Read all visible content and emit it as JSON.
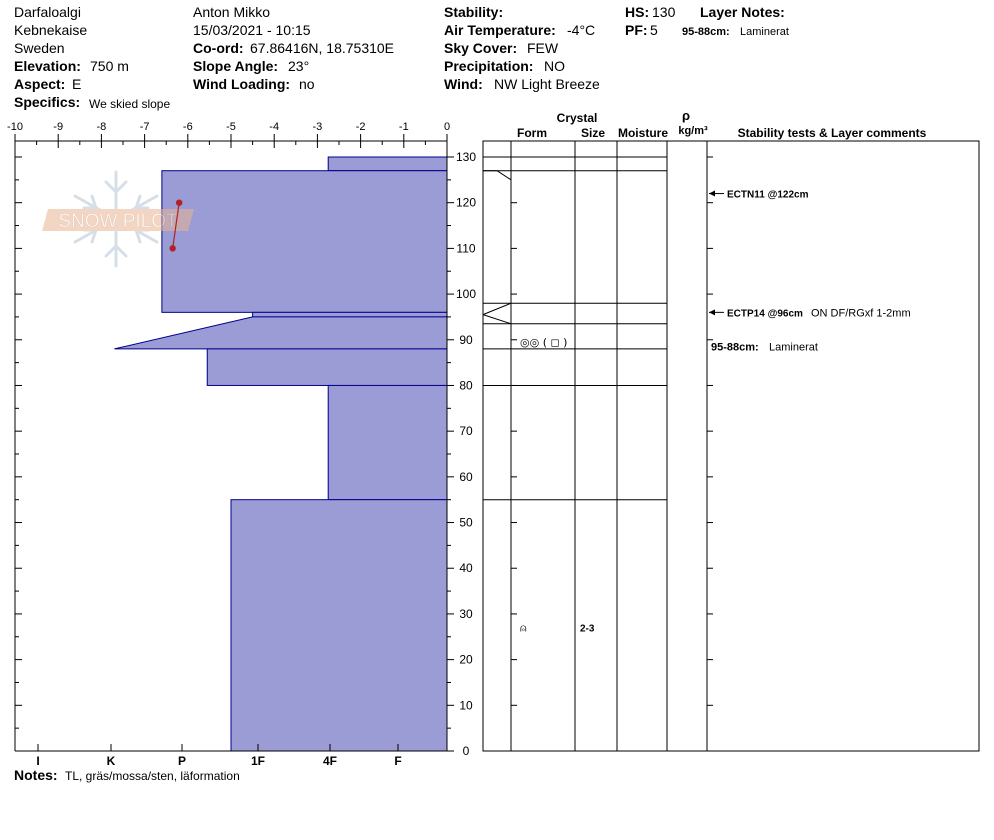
{
  "header": {
    "location": "Darfaloalgi",
    "region": "Kebnekaise",
    "country": "Sweden",
    "elevation_label": "Elevation:",
    "elevation_value": "750 m",
    "aspect_label": "Aspect:",
    "aspect_value": "E",
    "specifics_label": "Specifics:",
    "specifics_value": "We skied slope",
    "observer": "Anton Mikko",
    "datetime": "15/03/2021 - 10:15",
    "coord_label": "Co-ord:",
    "coord_value": "67.86416N, 18.75310E",
    "slope_label": "Slope Angle:",
    "slope_value": "23°",
    "wind_loading_label": "Wind Loading:",
    "wind_loading_value": "no",
    "stability_label": "Stability:",
    "air_temp_label": "Air Temperature:",
    "air_temp_value": "-4°C",
    "sky_label": "Sky Cover:",
    "sky_value": "FEW",
    "precip_label": "Precipitation:",
    "precip_value": "NO",
    "wind_label": "Wind:",
    "wind_value": "NW Light Breeze",
    "hs_label": "HS:",
    "hs_value": "130",
    "pf_label": "PF:",
    "pf_value": "5",
    "layer_notes_label": "Layer Notes:",
    "layer_note_range": "95-88cm:",
    "layer_note_text": "Laminerat"
  },
  "notes": {
    "label": "Notes:",
    "text": "TL, gräs/mossa/sten, läformation"
  },
  "watermark": {
    "text": "SNOW PILOT"
  },
  "table_headers": {
    "crystal": "Crystal",
    "form": "Form",
    "size": "Size",
    "moisture": "Moisture",
    "rho": "ρ",
    "density_unit": "kg/m³",
    "comments": "Stability tests & Layer comments"
  },
  "chart_data": {
    "type": "area",
    "temperature_axis": {
      "ticks": [
        -10,
        -9,
        -8,
        -7,
        -6,
        -5,
        -4,
        -3,
        -2,
        -1,
        0
      ],
      "range": [
        -10,
        0
      ]
    },
    "hardness_axis": {
      "labels": [
        "I",
        "K",
        "P",
        "1F",
        "4F",
        "F"
      ]
    },
    "depth_axis": {
      "ticks": [
        0,
        10,
        20,
        30,
        40,
        50,
        60,
        70,
        80,
        90,
        100,
        110,
        120,
        130
      ],
      "range": [
        0,
        130
      ]
    },
    "hardness_profile": [
      {
        "top": 130,
        "bottom": 127,
        "width": 2.75
      },
      {
        "top": 127,
        "bottom": 96,
        "width": 6.6
      },
      {
        "top": 96,
        "bottom": 95,
        "width": 4.5,
        "wedge_top": true
      },
      {
        "top": 95,
        "bottom": 88,
        "width": 7.7,
        "wedge": true
      },
      {
        "top": 88,
        "bottom": 80,
        "width": 5.55
      },
      {
        "top": 80,
        "bottom": 55,
        "width": 2.75
      },
      {
        "top": 55,
        "bottom": 0,
        "width": 5.0
      }
    ],
    "temperature_profile": [
      {
        "depth": 120,
        "temp": -6.2
      },
      {
        "depth": 110,
        "temp": -6.35
      }
    ],
    "layer_boundaries": [
      130,
      127,
      98,
      93.5,
      88,
      80,
      55
    ],
    "layer_grains": [
      {
        "depth": 89.5,
        "form": "◎◎ ( ◻ )",
        "size": ""
      },
      {
        "depth": 27,
        "form": "⍝",
        "size": "2-3"
      }
    ],
    "stability_tests": [
      {
        "depth": 122,
        "label": "ECTN11 @122cm",
        "comment": ""
      },
      {
        "depth": 96,
        "label": "ECTP14 @96cm",
        "comment": "ON DF/RGxf 1-2mm"
      }
    ],
    "layer_comments": [
      {
        "depth": 88.5,
        "range": "95-88cm:",
        "text": "Laminerat"
      }
    ]
  }
}
